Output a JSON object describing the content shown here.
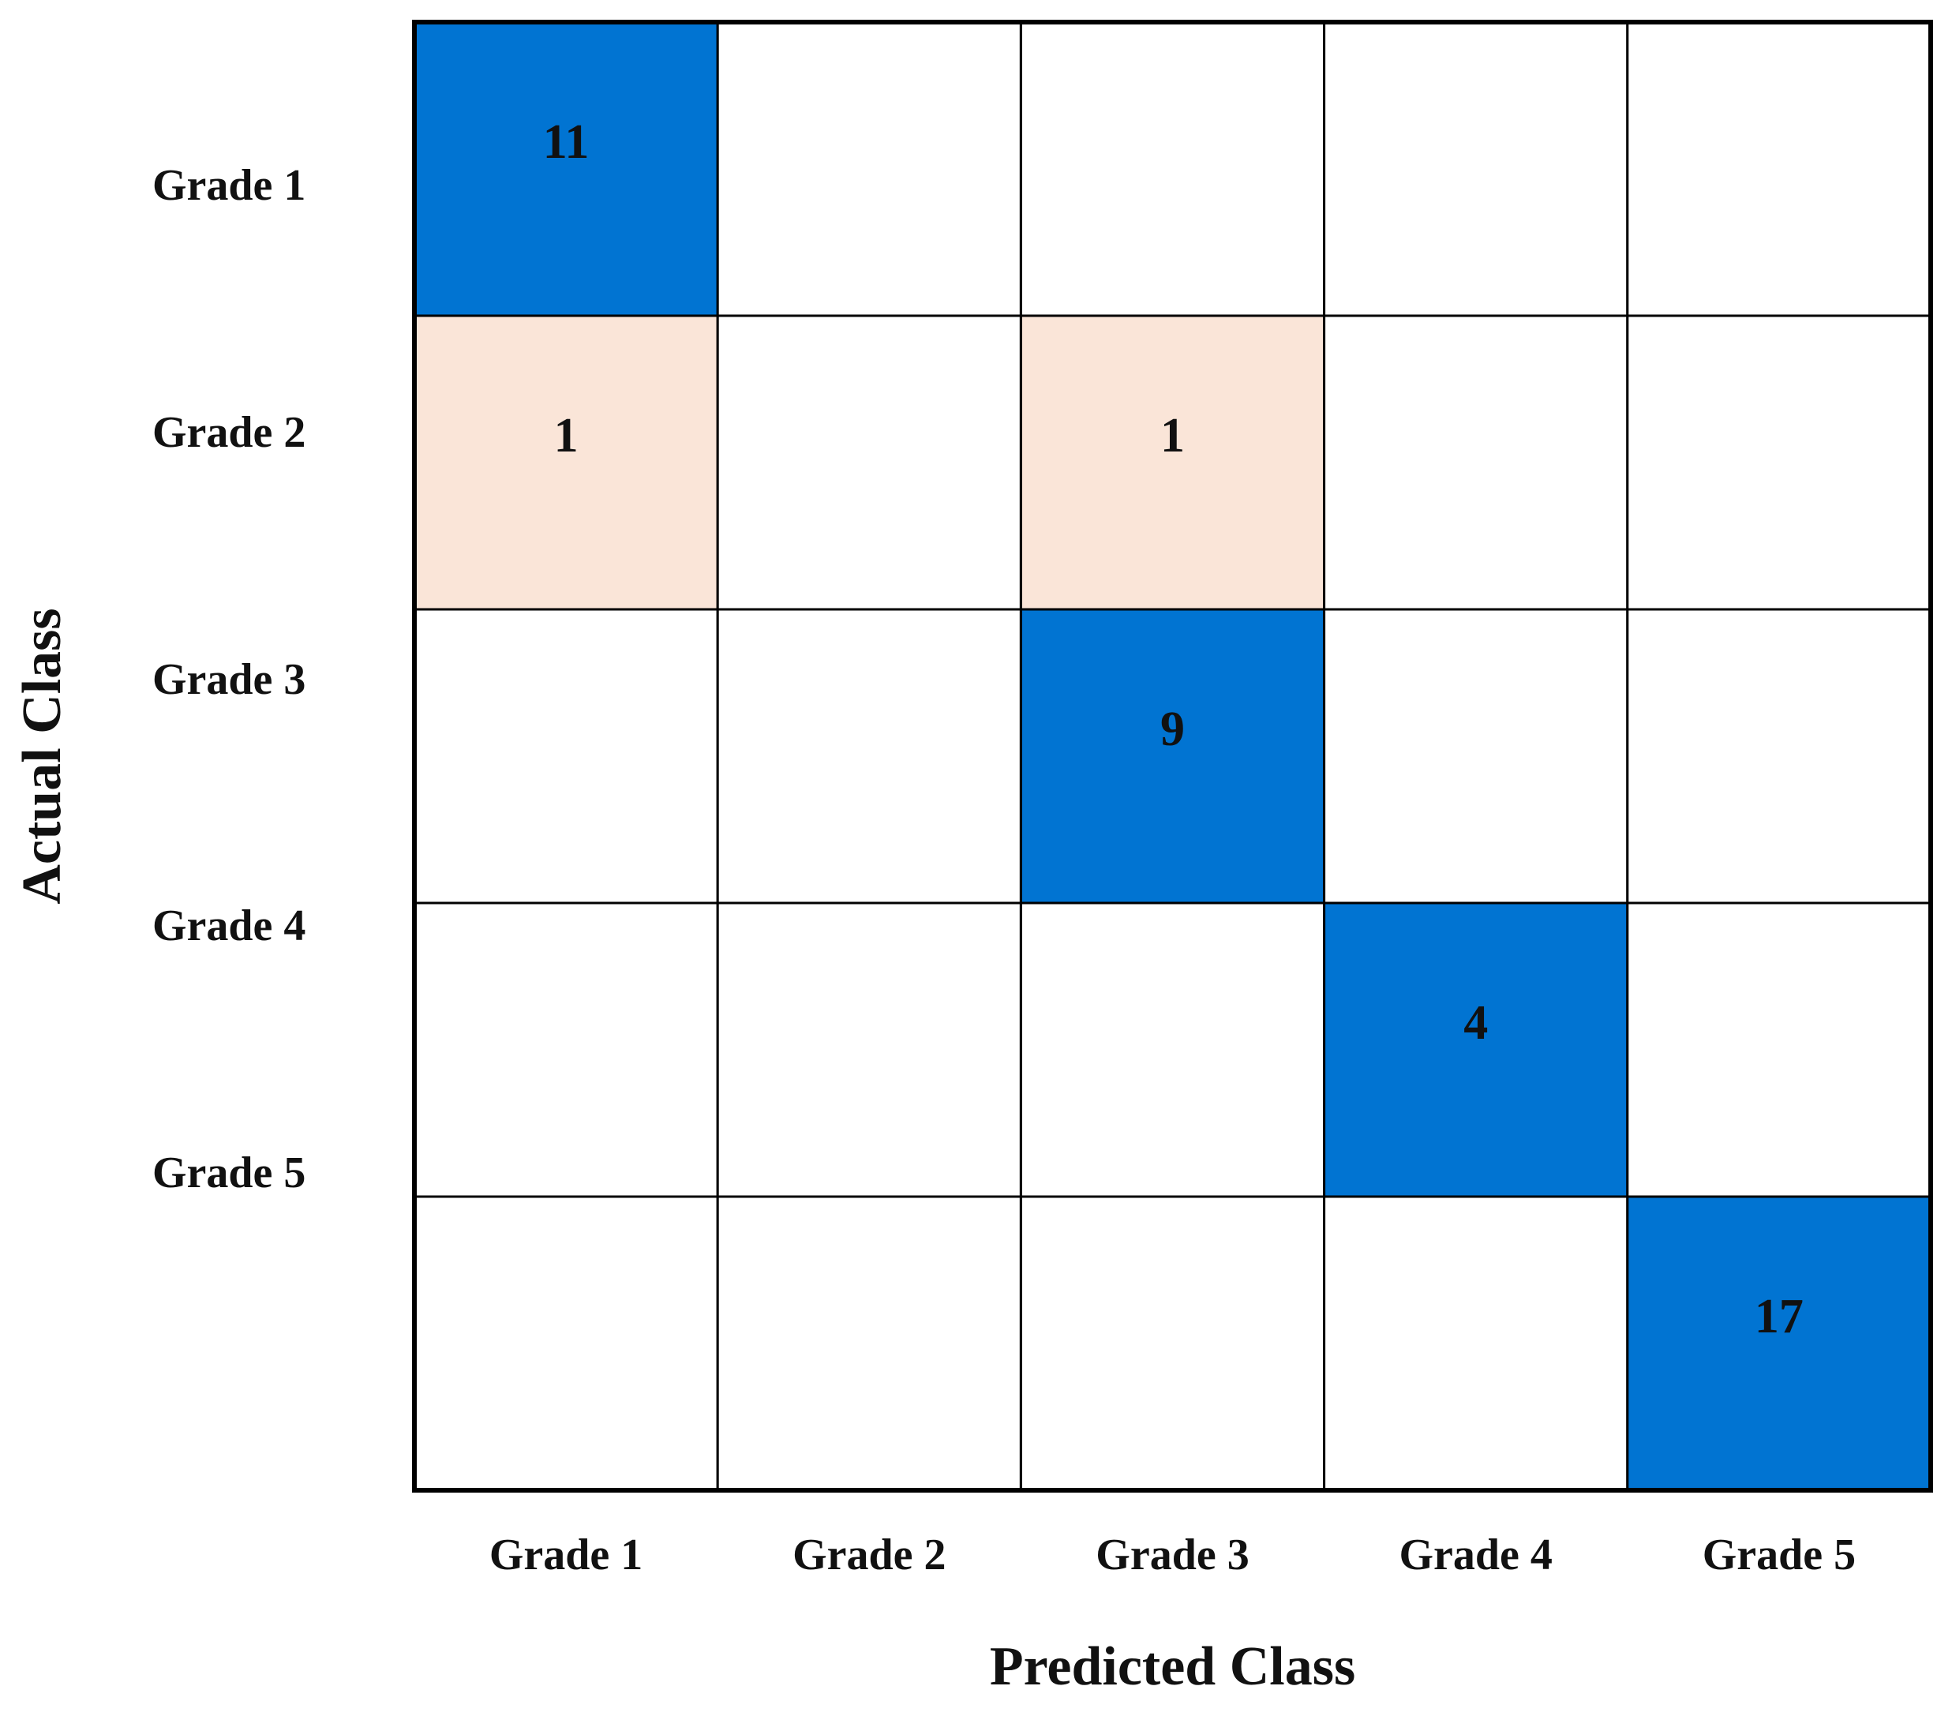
{
  "chart_data": {
    "type": "heatmap",
    "title": "",
    "xlabel": "Predicted Class",
    "ylabel": "Actual Class",
    "x_categories": [
      "Grade 1",
      "Grade 2",
      "Grade 3",
      "Grade 4",
      "Grade 5"
    ],
    "y_categories": [
      "Grade 1",
      "Grade 2",
      "Grade 3",
      "Grade 4",
      "Grade 5"
    ],
    "values": [
      [
        11,
        null,
        null,
        null,
        null
      ],
      [
        1,
        null,
        1,
        null,
        null
      ],
      [
        null,
        null,
        9,
        null,
        null
      ],
      [
        null,
        null,
        null,
        4,
        null
      ],
      [
        null,
        null,
        null,
        null,
        17
      ]
    ],
    "grid": true,
    "legend": "none",
    "colors": {
      "correct": "#0174D2",
      "misclassified": "#FAE5D8",
      "empty": "#FFFFFF",
      "border": "#000000",
      "text": "#111111"
    }
  }
}
